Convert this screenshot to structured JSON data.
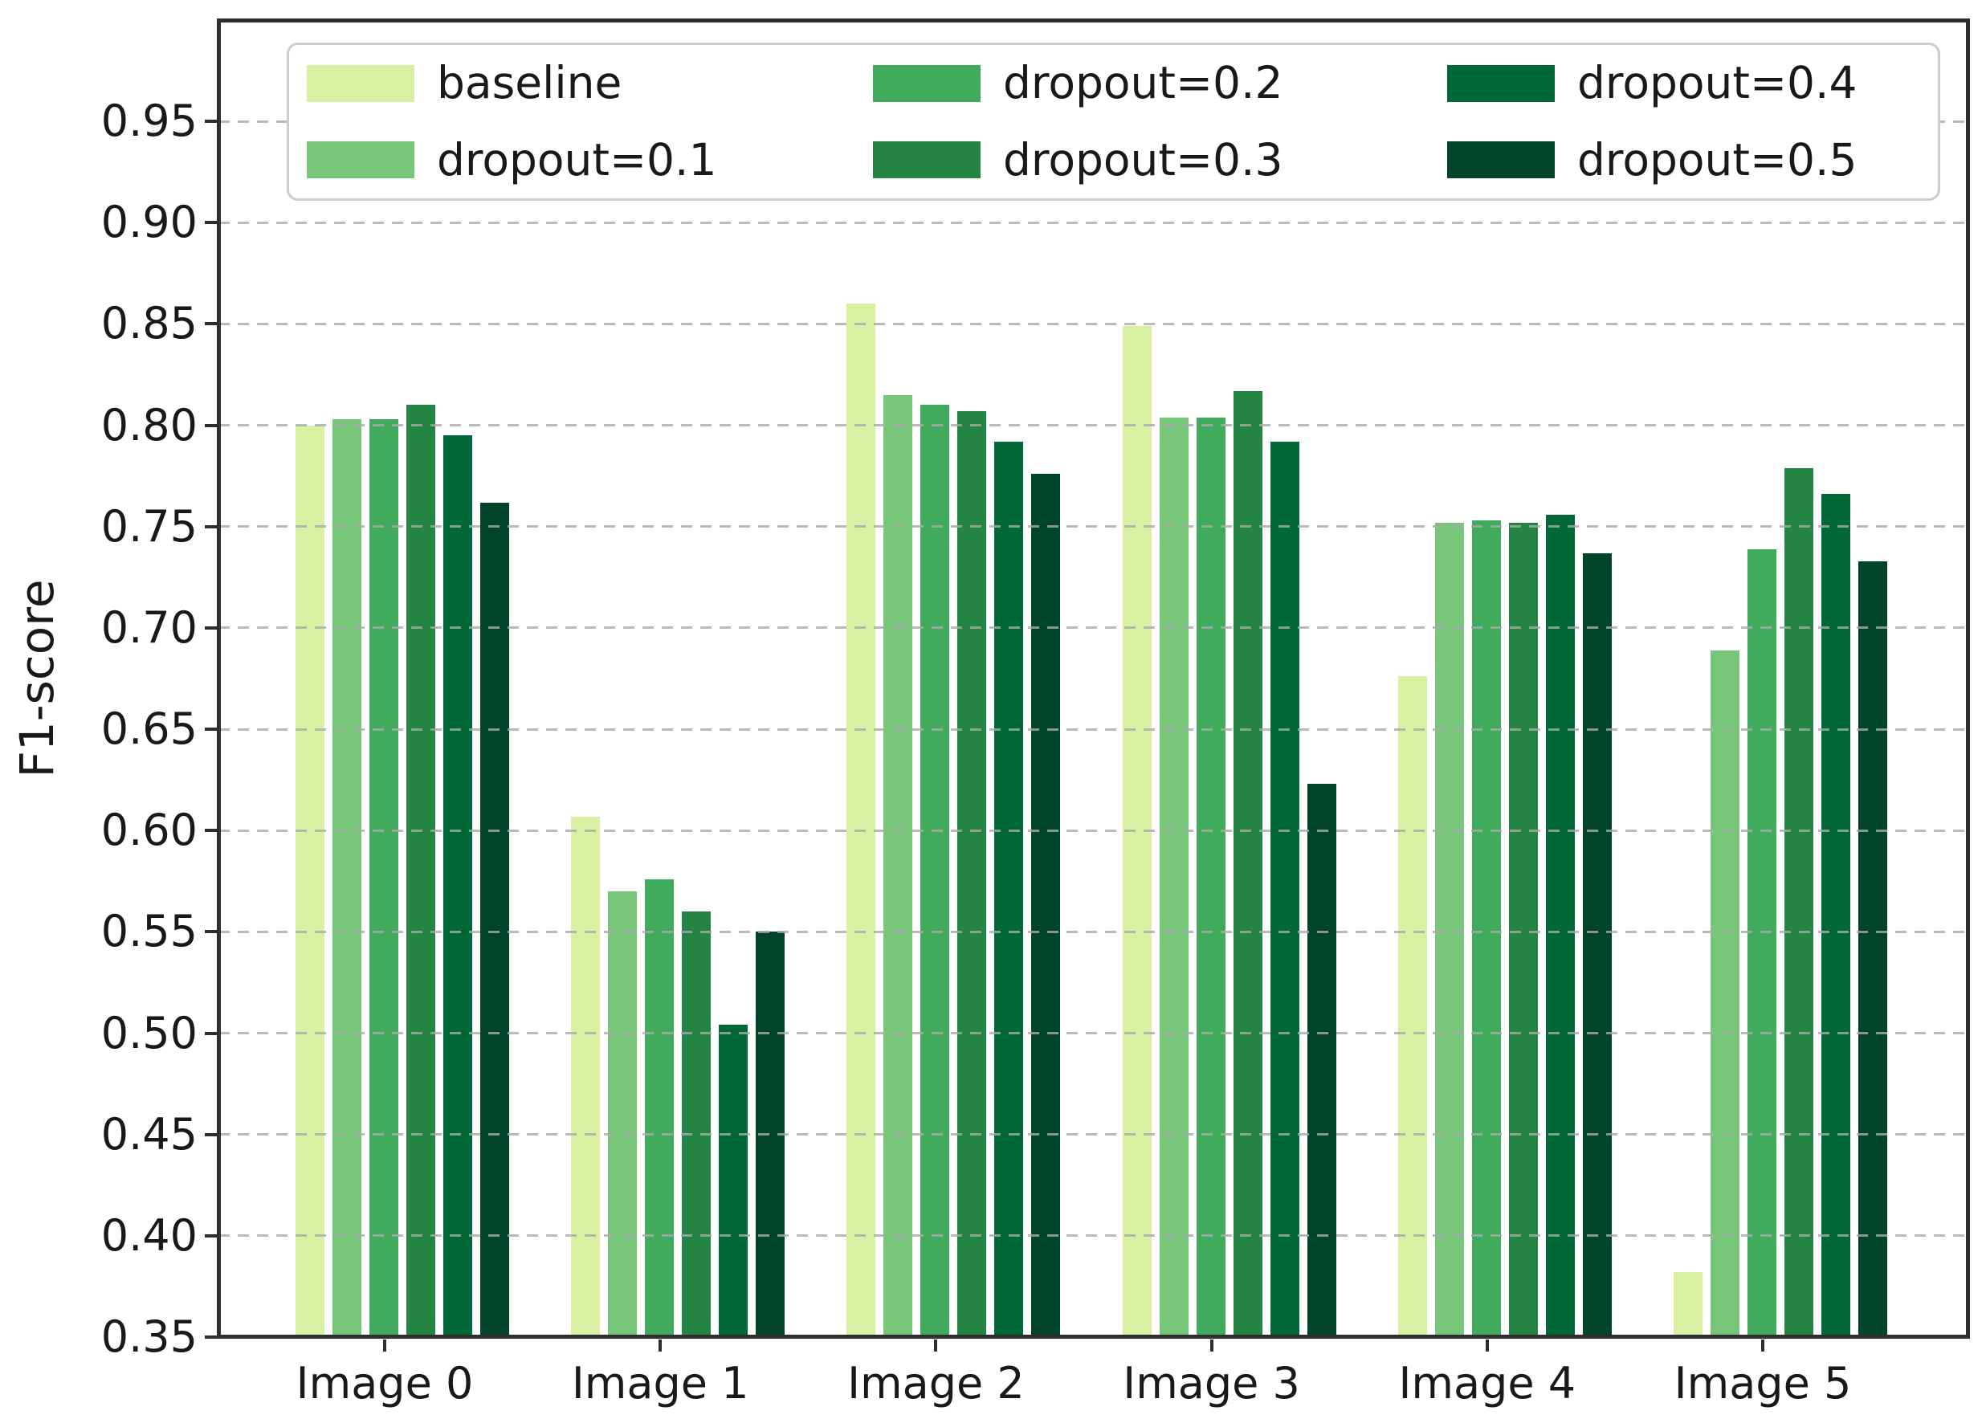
{
  "figure": {
    "background": "#ffffff",
    "text_color": "#191919",
    "spine_color": "#2e2e2e",
    "grid_color": "#a9a9a9",
    "legend_border_color": "#cdcdcd"
  },
  "chart_data": {
    "type": "bar",
    "title": "",
    "xlabel": "",
    "ylabel": "F1-score",
    "categories": [
      "Image 0",
      "Image 1",
      "Image 2",
      "Image 3",
      "Image 4",
      "Image 5"
    ],
    "series": [
      {
        "name": "baseline",
        "color": "#d9f0a3",
        "values": [
          0.8,
          0.607,
          0.86,
          0.849,
          0.676,
          0.382
        ]
      },
      {
        "name": "dropout=0.1",
        "color": "#78c679",
        "values": [
          0.803,
          0.57,
          0.815,
          0.804,
          0.752,
          0.689
        ]
      },
      {
        "name": "dropout=0.2",
        "color": "#41ab5d",
        "values": [
          0.803,
          0.576,
          0.81,
          0.804,
          0.753,
          0.739
        ]
      },
      {
        "name": "dropout=0.3",
        "color": "#238443",
        "values": [
          0.81,
          0.56,
          0.807,
          0.817,
          0.752,
          0.779
        ]
      },
      {
        "name": "dropout=0.4",
        "color": "#006837",
        "values": [
          0.795,
          0.504,
          0.792,
          0.792,
          0.756,
          0.766
        ]
      },
      {
        "name": "dropout=0.5",
        "color": "#004529",
        "values": [
          0.762,
          0.55,
          0.776,
          0.623,
          0.737,
          0.733
        ]
      }
    ],
    "ylim": [
      0.35,
      1.0
    ],
    "yticks": [
      {
        "value": 0.35,
        "label": "0.35"
      },
      {
        "value": 0.4,
        "label": "0.40"
      },
      {
        "value": 0.45,
        "label": "0.45"
      },
      {
        "value": 0.5,
        "label": "0.50"
      },
      {
        "value": 0.55,
        "label": "0.55"
      },
      {
        "value": 0.6,
        "label": "0.60"
      },
      {
        "value": 0.65,
        "label": "0.65"
      },
      {
        "value": 0.7,
        "label": "0.70"
      },
      {
        "value": 0.75,
        "label": "0.75"
      },
      {
        "value": 0.8,
        "label": "0.80"
      },
      {
        "value": 0.85,
        "label": "0.85"
      },
      {
        "value": 0.9,
        "label": "0.90"
      },
      {
        "value": 0.95,
        "label": "0.95"
      }
    ],
    "grid": "horizontal dashed, drawn over bars",
    "legend_position": "upper left, 2 rows x 3 columns, column-major"
  }
}
